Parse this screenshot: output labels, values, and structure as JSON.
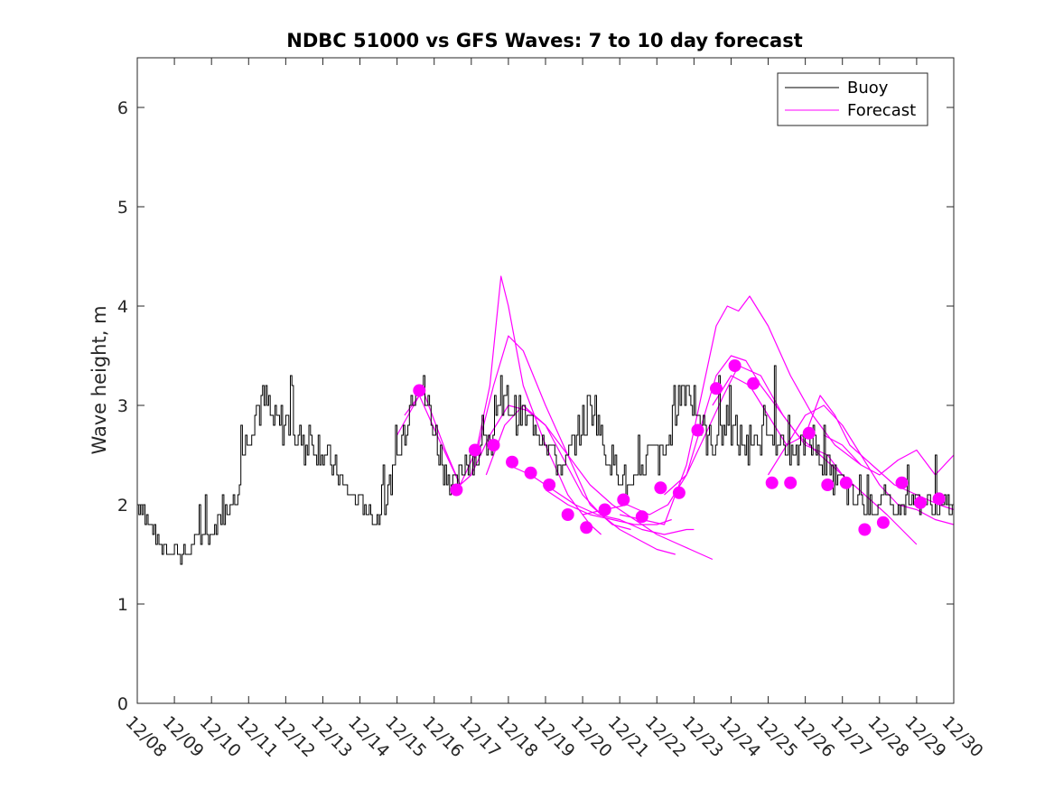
{
  "chart_data": {
    "type": "line",
    "title": "NDBC 51000 vs GFS Waves: 7 to 10 day forecast",
    "xlabel": "",
    "ylabel": "Wave height, m",
    "x_units": "days since 12/08",
    "xlim": [
      0,
      22
    ],
    "ylim": [
      0,
      6.5
    ],
    "yticks": [
      0,
      1,
      2,
      3,
      4,
      5,
      6
    ],
    "xticks": [
      {
        "x": 0,
        "label": "12/08"
      },
      {
        "x": 1,
        "label": "12/09"
      },
      {
        "x": 2,
        "label": "12/10"
      },
      {
        "x": 3,
        "label": "12/11"
      },
      {
        "x": 4,
        "label": "12/12"
      },
      {
        "x": 5,
        "label": "12/13"
      },
      {
        "x": 6,
        "label": "12/14"
      },
      {
        "x": 7,
        "label": "12/15"
      },
      {
        "x": 8,
        "label": "12/16"
      },
      {
        "x": 9,
        "label": "12/17"
      },
      {
        "x": 10,
        "label": "12/18"
      },
      {
        "x": 11,
        "label": "12/19"
      },
      {
        "x": 12,
        "label": "12/20"
      },
      {
        "x": 13,
        "label": "12/21"
      },
      {
        "x": 14,
        "label": "12/22"
      },
      {
        "x": 15,
        "label": "12/23"
      },
      {
        "x": 16,
        "label": "12/24"
      },
      {
        "x": 17,
        "label": "12/25"
      },
      {
        "x": 18,
        "label": "12/26"
      },
      {
        "x": 19,
        "label": "12/27"
      },
      {
        "x": 20,
        "label": "12/28"
      },
      {
        "x": 21,
        "label": "12/29"
      },
      {
        "x": 22,
        "label": "12/30"
      }
    ],
    "legend": {
      "position": "top-right",
      "entries": [
        {
          "label": "Buoy",
          "color": "#000000"
        },
        {
          "label": "Forecast",
          "color": "#ff00ff"
        }
      ]
    },
    "buoy_color": "#000000",
    "forecast_color": "#ff00ff",
    "buoy": {
      "name": "Buoy",
      "x": [
        0,
        0.1,
        0.25,
        0.45,
        0.6,
        0.8,
        1.0,
        1.2,
        1.4,
        1.6,
        1.8,
        2.0,
        2.15,
        2.35,
        2.5,
        2.7,
        2.85,
        3.0,
        3.2,
        3.45,
        3.7,
        3.9,
        4.1,
        4.3,
        4.5,
        4.7,
        4.9,
        5.1,
        5.3,
        5.5,
        5.7,
        5.9,
        6.1,
        6.3,
        6.5,
        6.7,
        6.9,
        7.05,
        7.2,
        7.4,
        7.55,
        7.7,
        7.8,
        8.0,
        8.2,
        8.35,
        8.5,
        8.65,
        8.8,
        9.0,
        9.2,
        9.4,
        9.6,
        9.8,
        10.0,
        10.15,
        10.3,
        10.5,
        10.7,
        10.9,
        11.1,
        11.3,
        11.5,
        11.7,
        11.9,
        12.1,
        12.3,
        12.5,
        12.65,
        12.8,
        12.95,
        13.1,
        13.3,
        13.5,
        13.7,
        13.9,
        14.1,
        14.3,
        14.5,
        14.7,
        14.9,
        15.1,
        15.3,
        15.5,
        15.7,
        15.9,
        16.1,
        16.3,
        16.5,
        16.7,
        16.9,
        17.1,
        17.3,
        17.5,
        17.7,
        17.9,
        18.1,
        18.3,
        18.5,
        18.7,
        18.9,
        19.1,
        19.3,
        19.5,
        19.7,
        19.9,
        20.1,
        20.3,
        20.5,
        20.7,
        20.9,
        21.1,
        21.3,
        21.5,
        21.7,
        22.0
      ],
      "values": [
        2.05,
        2.0,
        1.85,
        1.7,
        1.6,
        1.55,
        1.55,
        1.5,
        1.55,
        1.65,
        1.7,
        1.7,
        1.8,
        1.95,
        2.05,
        2.2,
        2.5,
        2.75,
        3.0,
        3.0,
        2.85,
        2.8,
        2.85,
        2.7,
        2.55,
        2.6,
        2.6,
        2.45,
        2.35,
        2.25,
        2.1,
        2.05,
        2.0,
        1.9,
        1.85,
        2.05,
        2.3,
        2.5,
        2.75,
        3.15,
        3.3,
        3.15,
        3.0,
        2.75,
        2.45,
        2.3,
        2.2,
        2.25,
        2.45,
        2.5,
        2.5,
        2.55,
        2.7,
        2.95,
        3.05,
        2.95,
        2.9,
        2.85,
        2.8,
        2.75,
        2.6,
        2.4,
        2.35,
        2.55,
        2.75,
        2.9,
        3.0,
        2.7,
        2.5,
        2.45,
        2.35,
        2.25,
        2.15,
        2.25,
        2.45,
        2.55,
        2.45,
        2.6,
        2.95,
        3.2,
        3.1,
        2.9,
        2.7,
        2.6,
        2.75,
        2.8,
        2.7,
        2.6,
        2.5,
        2.55,
        2.75,
        2.85,
        2.6,
        2.5,
        2.45,
        2.6,
        2.75,
        2.55,
        2.4,
        2.3,
        2.25,
        2.15,
        2.05,
        2.0,
        1.95,
        2.0,
        2.05,
        1.95,
        1.95,
        2.0,
        2.05,
        2.05,
        2.0,
        2.0,
        2.0,
        2.0
      ]
    },
    "forecast_runs": [
      {
        "x": [
          7.0,
          7.6,
          8.2,
          8.7,
          9.0,
          9.5,
          9.8,
          10.0,
          10.4,
          11.0,
          11.6,
          12.2,
          12.5
        ],
        "values": [
          2.7,
          3.1,
          2.6,
          2.2,
          2.3,
          3.2,
          4.3,
          4.0,
          3.2,
          2.6,
          2.1,
          1.8,
          1.7
        ]
      },
      {
        "x": [
          7.2,
          7.7,
          8.3,
          8.7,
          9.2,
          9.6,
          10.0,
          10.4,
          11.0,
          11.6,
          12.2,
          12.8,
          13.3
        ],
        "values": [
          2.9,
          3.15,
          2.55,
          2.2,
          2.6,
          3.2,
          3.7,
          3.55,
          3.0,
          2.5,
          2.0,
          1.8,
          1.75
        ]
      },
      {
        "x": [
          9.0,
          9.5,
          10.0,
          10.5,
          11.0,
          11.5,
          12.0,
          12.5,
          13.0,
          13.5,
          14.0,
          14.5
        ],
        "values": [
          2.3,
          2.7,
          3.0,
          2.95,
          2.8,
          2.45,
          2.1,
          1.9,
          1.75,
          1.65,
          1.55,
          1.5
        ]
      },
      {
        "x": [
          9.4,
          9.9,
          10.4,
          11.0,
          11.6,
          12.2,
          12.8,
          13.4,
          14.0,
          14.6,
          15.2,
          15.5
        ],
        "values": [
          2.3,
          2.8,
          3.0,
          2.8,
          2.5,
          2.2,
          2.0,
          1.85,
          1.7,
          1.6,
          1.5,
          1.45
        ]
      },
      {
        "x": [
          10.0,
          10.6,
          11.2,
          11.8,
          12.4,
          13.0,
          13.6,
          14.2,
          14.8,
          15.0
        ],
        "values": [
          2.4,
          2.3,
          2.15,
          2.0,
          1.9,
          1.85,
          1.75,
          1.7,
          1.75,
          1.75
        ]
      },
      {
        "x": [
          11.0,
          11.6,
          12.2,
          12.8,
          13.4,
          14.0,
          14.4
        ],
        "values": [
          2.15,
          2.0,
          1.9,
          1.85,
          1.8,
          1.8,
          1.85
        ]
      },
      {
        "x": [
          12.0,
          12.6,
          13.2,
          13.8,
          14.3,
          14.8,
          15.3,
          15.8,
          16.2,
          16.8,
          17.4,
          18.0,
          18.6,
          19.0
        ],
        "values": [
          1.9,
          1.95,
          2.0,
          1.9,
          2.0,
          2.3,
          2.7,
          3.1,
          3.4,
          3.3,
          2.9,
          2.6,
          2.5,
          2.3
        ]
      },
      {
        "x": [
          13.0,
          13.6,
          14.2,
          14.8,
          15.2,
          15.6,
          15.9,
          16.2,
          16.5,
          17.0,
          17.6,
          18.2,
          18.8,
          19.5
        ],
        "values": [
          1.9,
          1.85,
          1.8,
          2.4,
          3.1,
          3.8,
          4.0,
          3.95,
          4.1,
          3.8,
          3.3,
          2.9,
          2.6,
          2.4
        ]
      },
      {
        "x": [
          14.2,
          14.8,
          15.2,
          15.6,
          16.0,
          16.4,
          16.8,
          17.2,
          17.8,
          18.4,
          19.0,
          19.6,
          20.2,
          21.0
        ],
        "values": [
          2.1,
          2.3,
          2.8,
          3.3,
          3.5,
          3.45,
          3.2,
          3.0,
          2.7,
          2.5,
          2.3,
          2.1,
          1.9,
          1.6
        ]
      },
      {
        "x": [
          15.5,
          16.0,
          16.5,
          17.0,
          17.5,
          18.0,
          18.4,
          18.8,
          19.2,
          19.8,
          20.4,
          21.0,
          21.6,
          22.0
        ],
        "values": [
          3.0,
          3.3,
          3.2,
          2.9,
          2.6,
          2.7,
          3.1,
          2.9,
          2.6,
          2.4,
          2.2,
          2.1,
          2.0,
          1.95
        ]
      },
      {
        "x": [
          17.0,
          17.5,
          18.0,
          18.5,
          19.0,
          19.5,
          20.0,
          20.5,
          21.0,
          21.5,
          22.0
        ],
        "values": [
          2.3,
          2.6,
          2.9,
          3.0,
          2.8,
          2.5,
          2.2,
          2.0,
          1.95,
          1.85,
          1.8
        ]
      },
      {
        "x": [
          18.5,
          19.0,
          19.5,
          20.0,
          20.5,
          21.0,
          21.5,
          22.0
        ],
        "values": [
          2.7,
          2.6,
          2.4,
          2.3,
          2.45,
          2.55,
          2.3,
          2.5
        ]
      }
    ],
    "forecast_points": {
      "x": [
        7.6,
        8.6,
        9.1,
        9.6,
        10.1,
        10.6,
        11.1,
        11.6,
        12.1,
        12.6,
        13.1,
        13.6,
        14.1,
        14.6,
        15.1,
        15.6,
        16.1,
        16.6,
        17.1,
        17.6,
        18.1,
        18.6,
        19.1,
        19.6,
        20.1,
        20.6,
        21.1,
        21.6
      ],
      "values": [
        3.15,
        2.15,
        2.55,
        2.6,
        2.43,
        2.32,
        2.2,
        1.9,
        1.77,
        1.95,
        2.05,
        1.88,
        2.17,
        2.12,
        2.75,
        3.17,
        3.4,
        3.22,
        2.22,
        2.22,
        2.72,
        2.2,
        2.22,
        1.75,
        1.82,
        2.22,
        2.02,
        2.06
      ]
    }
  }
}
